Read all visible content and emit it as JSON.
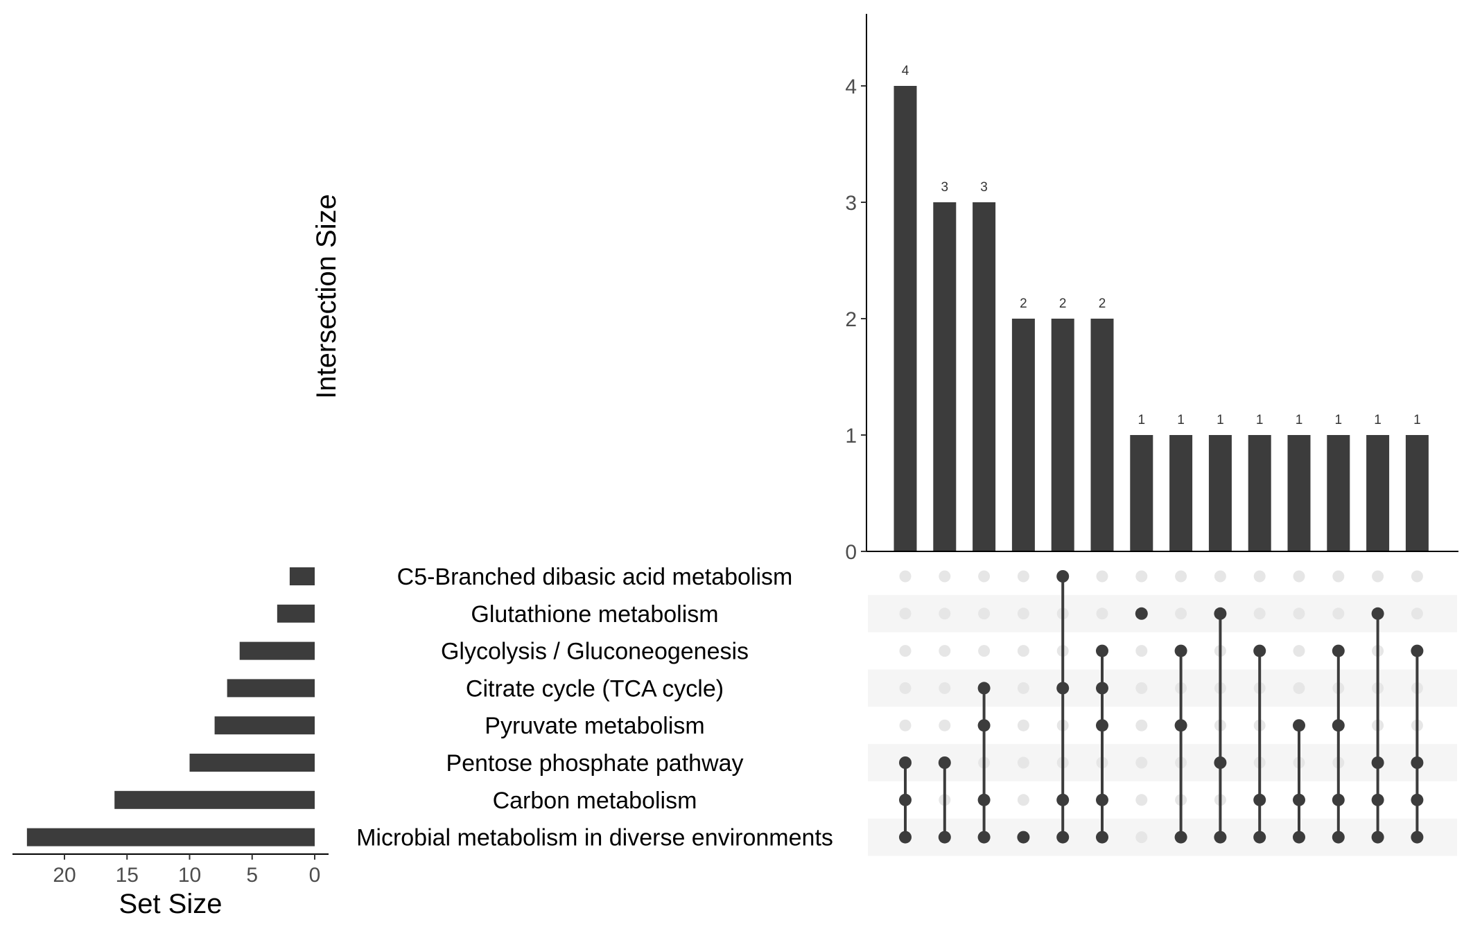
{
  "chart_data": {
    "type": "upset",
    "intersection_axis_title": "Intersection Size",
    "set_size_axis_title": "Set Size",
    "intersection_ylim": [
      0,
      4.6
    ],
    "intersection_yticks": [
      0,
      1,
      2,
      3,
      4
    ],
    "set_size_xlim": [
      0,
      24.5
    ],
    "set_size_xticks": [
      20,
      15,
      10,
      5,
      0
    ],
    "grid": false,
    "bar_color": "#3c3c3c",
    "inactive_dot_color": "#e6e6e6",
    "stripe_color": "#f5f5f5",
    "sets": [
      {
        "name": "C5-Branched dibasic acid metabolism",
        "size": 2
      },
      {
        "name": "Glutathione metabolism",
        "size": 3
      },
      {
        "name": "Glycolysis / Gluconeogenesis",
        "size": 6
      },
      {
        "name": "Citrate cycle (TCA cycle)",
        "size": 7
      },
      {
        "name": "Pyruvate metabolism",
        "size": 8
      },
      {
        "name": "Pentose phosphate pathway",
        "size": 10
      },
      {
        "name": "Carbon metabolism",
        "size": 16
      },
      {
        "name": "Microbial metabolism in diverse environments",
        "size": 23
      }
    ],
    "intersections": [
      {
        "size": 4,
        "label": "4",
        "members": [
          5,
          6,
          7
        ]
      },
      {
        "size": 3,
        "label": "3",
        "members": [
          5,
          7
        ]
      },
      {
        "size": 3,
        "label": "3",
        "members": [
          3,
          4,
          6,
          7
        ]
      },
      {
        "size": 2,
        "label": "2",
        "members": [
          7
        ]
      },
      {
        "size": 2,
        "label": "2",
        "members": [
          0,
          3,
          6,
          7
        ]
      },
      {
        "size": 2,
        "label": "2",
        "members": [
          2,
          3,
          4,
          6,
          7
        ]
      },
      {
        "size": 1,
        "label": "1",
        "members": [
          1
        ]
      },
      {
        "size": 1,
        "label": "1",
        "members": [
          2,
          4,
          7
        ]
      },
      {
        "size": 1,
        "label": "1",
        "members": [
          1,
          5,
          7
        ]
      },
      {
        "size": 1,
        "label": "1",
        "members": [
          2,
          6,
          7
        ]
      },
      {
        "size": 1,
        "label": "1",
        "members": [
          4,
          6,
          7
        ]
      },
      {
        "size": 1,
        "label": "1",
        "members": [
          2,
          4,
          6,
          7
        ]
      },
      {
        "size": 1,
        "label": "1",
        "members": [
          1,
          5,
          6,
          7
        ]
      },
      {
        "size": 1,
        "label": "1",
        "members": [
          2,
          5,
          6,
          7
        ]
      }
    ]
  }
}
